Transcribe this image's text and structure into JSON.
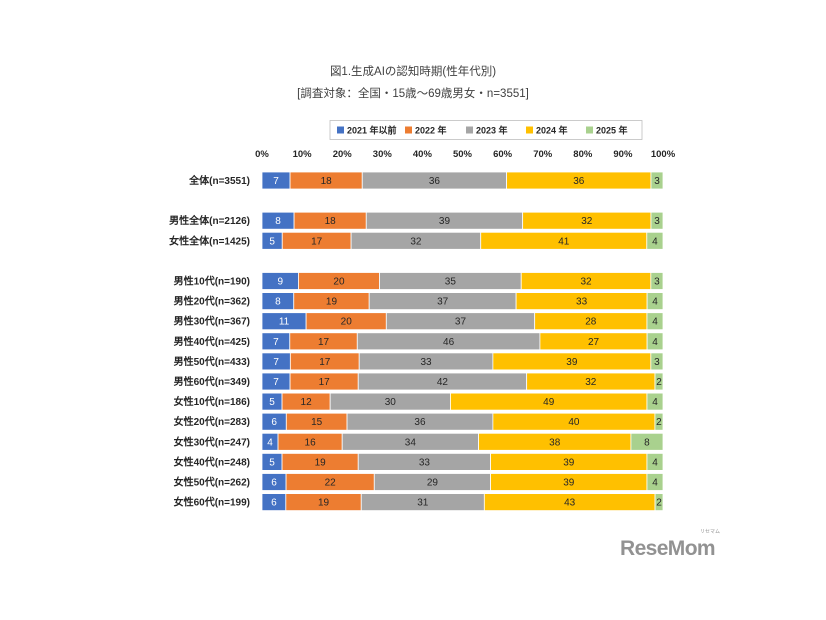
{
  "logo": {
    "text": "ReseMom",
    "kana": "リセマム",
    "color": "#929292"
  },
  "chart_data": {
    "type": "bar",
    "orientation": "horizontal",
    "stacked": true,
    "title": "図1.生成AIの認知時期(性年代別)",
    "subtitle": "[調査対象：全国・15歳〜69歳男女・n=3551]",
    "xlabel": "",
    "ylabel": "",
    "unit": "%",
    "xlim": [
      0,
      100
    ],
    "x_ticks": [
      "0%",
      "10%",
      "20%",
      "30%",
      "40%",
      "50%",
      "60%",
      "70%",
      "80%",
      "90%",
      "100%"
    ],
    "grid": false,
    "legend_position": "top",
    "categories": [
      "全体(n=3551)",
      "男性全体(n=2126)",
      "女性全体(n=1425)",
      "男性10代(n=190)",
      "男性20代(n=362)",
      "男性30代(n=367)",
      "男性40代(n=425)",
      "男性50代(n=433)",
      "男性60代(n=349)",
      "女性10代(n=186)",
      "女性20代(n=283)",
      "女性30代(n=247)",
      "女性40代(n=248)",
      "女性50代(n=262)",
      "女性60代(n=199)"
    ],
    "series": [
      {
        "name": "2021 年以前",
        "color": "#4472C4",
        "label_color": "#FFFFFF",
        "values": [
          7,
          8,
          5,
          9,
          8,
          11,
          7,
          7,
          7,
          5,
          6,
          4,
          5,
          6,
          6
        ]
      },
      {
        "name": "2022 年",
        "color": "#ED7D31",
        "label_color": "#262626",
        "values": [
          18,
          18,
          17,
          20,
          19,
          20,
          17,
          17,
          17,
          12,
          15,
          16,
          19,
          22,
          19
        ]
      },
      {
        "name": "2023 年",
        "color": "#A5A5A5",
        "label_color": "#262626",
        "values": [
          36,
          39,
          32,
          35,
          37,
          37,
          46,
          33,
          42,
          30,
          36,
          34,
          33,
          29,
          31
        ]
      },
      {
        "name": "2024 年",
        "color": "#FFC000",
        "label_color": "#262626",
        "values": [
          36,
          32,
          41,
          32,
          33,
          28,
          27,
          39,
          32,
          49,
          40,
          38,
          39,
          39,
          43
        ]
      },
      {
        "name": "2025 年",
        "color": "#A9D18E",
        "label_color": "#262626",
        "values": [
          3,
          3,
          4,
          3,
          4,
          4,
          4,
          3,
          2,
          4,
          2,
          8,
          4,
          4,
          2
        ]
      }
    ]
  }
}
